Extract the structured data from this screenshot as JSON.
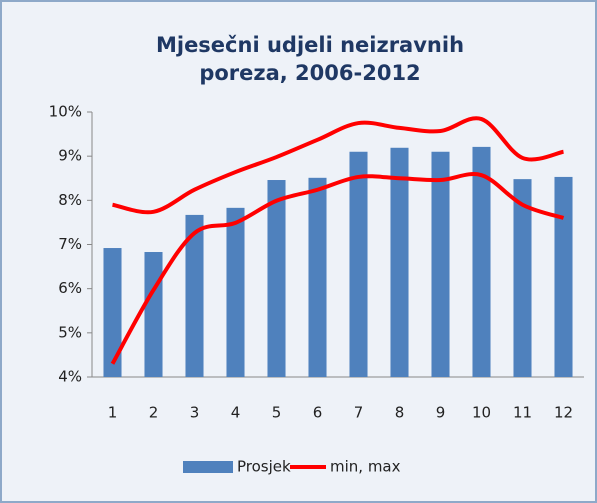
{
  "chart_data": {
    "type": "bar-line",
    "title": [
      "Mjesečni udjeli neizravnih",
      "poreza,  2006-2012"
    ],
    "categories": [
      "1",
      "2",
      "3",
      "4",
      "5",
      "6",
      "7",
      "8",
      "9",
      "10",
      "11",
      "12"
    ],
    "series": [
      {
        "name": "Prosjek",
        "color": "#4f81bd",
        "values": [
          6.92,
          6.83,
          7.67,
          7.83,
          8.46,
          8.51,
          9.1,
          9.19,
          9.1,
          9.21,
          8.48,
          8.53
        ]
      },
      {
        "name": "min, max",
        "color": "#ff0000",
        "lows": [
          4.3,
          5.97,
          7.26,
          7.49,
          7.99,
          8.24,
          8.53,
          8.5,
          8.46,
          8.57,
          7.9,
          7.6
        ],
        "highs": [
          7.9,
          7.74,
          8.24,
          8.64,
          8.98,
          9.37,
          9.75,
          9.64,
          9.57,
          9.84,
          8.96,
          9.1
        ]
      }
    ],
    "ylim": [
      4,
      10
    ],
    "yticks": [
      {
        "value": 4,
        "label": "4%"
      },
      {
        "value": 5,
        "label": "5%"
      },
      {
        "value": 6,
        "label": "6%"
      },
      {
        "value": 7,
        "label": "7%"
      },
      {
        "value": 8,
        "label": "8%"
      },
      {
        "value": 9,
        "label": "9%"
      },
      {
        "value": 10,
        "label": "10%"
      }
    ],
    "legend": "bottom"
  }
}
